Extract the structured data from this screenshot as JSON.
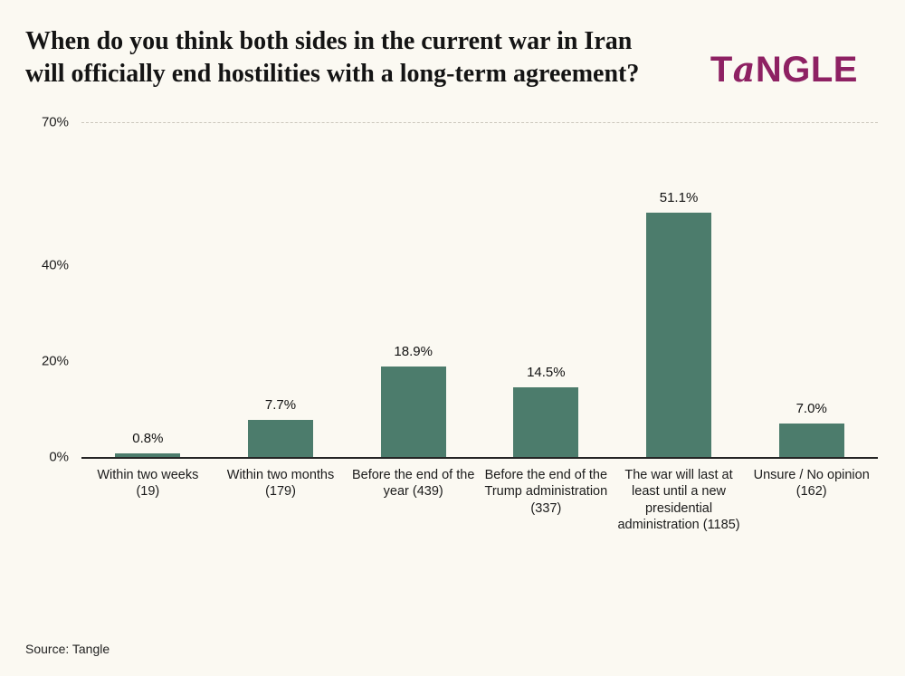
{
  "header": {
    "title": "When do you think both sides in the current war in Iran will officially end hostilities with a long-term agreement?",
    "logo": {
      "text": "TANGLE",
      "prefix": "T",
      "a": "a",
      "suffix": "NGLE"
    }
  },
  "footer": {
    "source": "Source: Tangle"
  },
  "colors": {
    "background": "#fbf9f2",
    "bar": "#4c7c6c",
    "logo": "#8e2163",
    "axis_line": "#252525",
    "gridline": "#ccc7bd"
  },
  "chart_data": {
    "type": "bar",
    "title": "When do you think both sides in the current war in Iran will officially end hostilities with a long-term agreement?",
    "categories": [
      "Within two weeks (19)",
      "Within two months (179)",
      "Before the end of the year (439)",
      "Before the end of the Trump administration (337)",
      "The war will last at least until a new presidential administration (1185)",
      "Unsure / No opinion (162)"
    ],
    "values": [
      0.8,
      7.7,
      18.9,
      14.5,
      51.1,
      7.0
    ],
    "value_labels": [
      "0.8%",
      "7.7%",
      "18.9%",
      "14.5%",
      "51.1%",
      "7.0%"
    ],
    "counts": [
      19,
      179,
      439,
      337,
      1185,
      162
    ],
    "xlabel": "",
    "ylabel": "",
    "ylim": [
      0,
      70
    ],
    "y_ticks": [
      {
        "value": 70,
        "label": "70%"
      },
      {
        "value": 40,
        "label": "40%"
      },
      {
        "value": 20,
        "label": "20%"
      },
      {
        "value": 0,
        "label": "0%"
      }
    ],
    "grid": "single dashed horizontal line at 70% (top of plot)",
    "legend": "none",
    "bar_color": "#4c7c6c",
    "source": "Source: Tangle"
  }
}
